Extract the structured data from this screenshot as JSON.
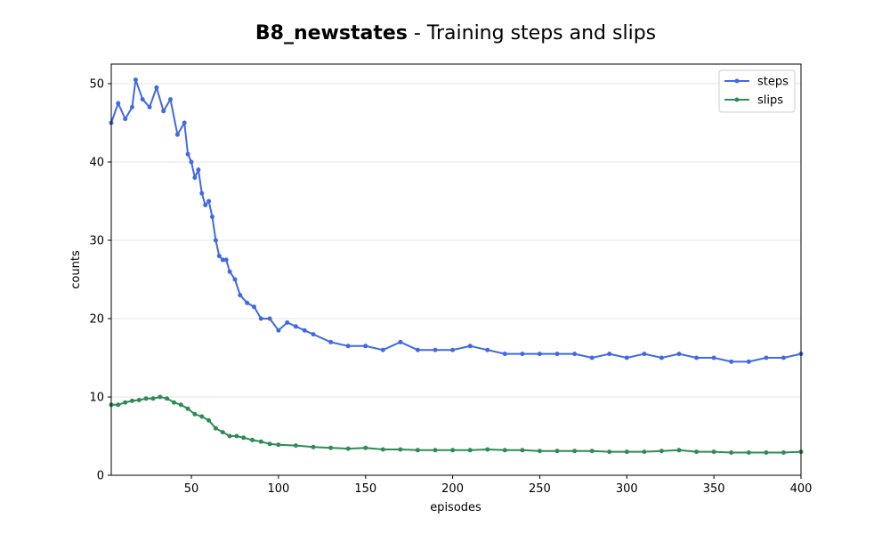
{
  "chart_data": {
    "type": "line",
    "title_bold": "B8_newstates",
    "title_rest": " - Training steps and slips",
    "xlabel": "episodes",
    "ylabel": "counts",
    "xlim": [
      4,
      400
    ],
    "ylim": [
      0,
      52.5
    ],
    "xticks": [
      50,
      100,
      150,
      200,
      250,
      300,
      350,
      400
    ],
    "yticks": [
      0,
      10,
      20,
      30,
      40,
      50
    ],
    "grid": "horizontal",
    "legend_position": "top-right",
    "series": [
      {
        "name": "steps",
        "color": "#4169e1",
        "points": [
          [
            4,
            45
          ],
          [
            8,
            47.5
          ],
          [
            12,
            45.5
          ],
          [
            16,
            47
          ],
          [
            18,
            50.5
          ],
          [
            22,
            48
          ],
          [
            26,
            47
          ],
          [
            30,
            49.5
          ],
          [
            34,
            46.5
          ],
          [
            38,
            48
          ],
          [
            42,
            43.5
          ],
          [
            46,
            45
          ],
          [
            48,
            41
          ],
          [
            50,
            40
          ],
          [
            52,
            38
          ],
          [
            54,
            39
          ],
          [
            56,
            36
          ],
          [
            58,
            34.5
          ],
          [
            60,
            35
          ],
          [
            62,
            33
          ],
          [
            64,
            30
          ],
          [
            66,
            28
          ],
          [
            68,
            27.5
          ],
          [
            70,
            27.5
          ],
          [
            72,
            26
          ],
          [
            75,
            25
          ],
          [
            78,
            23
          ],
          [
            82,
            22
          ],
          [
            86,
            21.5
          ],
          [
            90,
            20
          ],
          [
            95,
            20
          ],
          [
            100,
            18.5
          ],
          [
            105,
            19.5
          ],
          [
            110,
            19
          ],
          [
            115,
            18.5
          ],
          [
            120,
            18
          ],
          [
            130,
            17
          ],
          [
            140,
            16.5
          ],
          [
            150,
            16.5
          ],
          [
            160,
            16
          ],
          [
            170,
            17
          ],
          [
            180,
            16
          ],
          [
            190,
            16
          ],
          [
            200,
            16
          ],
          [
            210,
            16.5
          ],
          [
            220,
            16
          ],
          [
            230,
            15.5
          ],
          [
            240,
            15.5
          ],
          [
            250,
            15.5
          ],
          [
            260,
            15.5
          ],
          [
            270,
            15.5
          ],
          [
            280,
            15
          ],
          [
            290,
            15.5
          ],
          [
            300,
            15
          ],
          [
            310,
            15.5
          ],
          [
            320,
            15
          ],
          [
            330,
            15.5
          ],
          [
            340,
            15
          ],
          [
            350,
            15
          ],
          [
            360,
            14.5
          ],
          [
            370,
            14.5
          ],
          [
            380,
            15
          ],
          [
            390,
            15
          ],
          [
            400,
            15.5
          ]
        ]
      },
      {
        "name": "slips",
        "color": "#2e8b57",
        "points": [
          [
            4,
            9
          ],
          [
            8,
            9
          ],
          [
            12,
            9.3
          ],
          [
            16,
            9.5
          ],
          [
            20,
            9.6
          ],
          [
            24,
            9.8
          ],
          [
            28,
            9.8
          ],
          [
            32,
            10
          ],
          [
            36,
            9.8
          ],
          [
            40,
            9.3
          ],
          [
            44,
            9
          ],
          [
            48,
            8.5
          ],
          [
            52,
            7.8
          ],
          [
            56,
            7.5
          ],
          [
            60,
            7
          ],
          [
            64,
            6
          ],
          [
            68,
            5.5
          ],
          [
            72,
            5
          ],
          [
            76,
            5
          ],
          [
            80,
            4.8
          ],
          [
            85,
            4.5
          ],
          [
            90,
            4.3
          ],
          [
            95,
            4
          ],
          [
            100,
            3.9
          ],
          [
            110,
            3.8
          ],
          [
            120,
            3.6
          ],
          [
            130,
            3.5
          ],
          [
            140,
            3.4
          ],
          [
            150,
            3.5
          ],
          [
            160,
            3.3
          ],
          [
            170,
            3.3
          ],
          [
            180,
            3.2
          ],
          [
            190,
            3.2
          ],
          [
            200,
            3.2
          ],
          [
            210,
            3.2
          ],
          [
            220,
            3.3
          ],
          [
            230,
            3.2
          ],
          [
            240,
            3.2
          ],
          [
            250,
            3.1
          ],
          [
            260,
            3.1
          ],
          [
            270,
            3.1
          ],
          [
            280,
            3.1
          ],
          [
            290,
            3
          ],
          [
            300,
            3
          ],
          [
            310,
            3
          ],
          [
            320,
            3.1
          ],
          [
            330,
            3.2
          ],
          [
            340,
            3
          ],
          [
            350,
            3
          ],
          [
            360,
            2.9
          ],
          [
            370,
            2.9
          ],
          [
            380,
            2.9
          ],
          [
            390,
            2.9
          ],
          [
            400,
            3
          ]
        ]
      }
    ]
  }
}
